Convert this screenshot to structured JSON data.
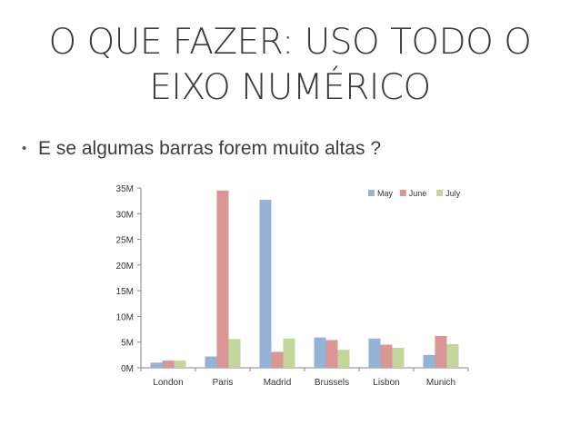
{
  "slide": {
    "title_line1": "O QUE FAZER: USO TODO O",
    "title_line2": "EIXO NUMÉRICO",
    "bullet_text": "E se algumas barras forem muito altas ?"
  },
  "chart_data": {
    "type": "bar",
    "categories": [
      "London",
      "Paris",
      "Madrid",
      "Brussels",
      "Lisbon",
      "Munich"
    ],
    "series": [
      {
        "name": "May",
        "color": "#95b3d7",
        "values": [
          1.0,
          2.2,
          32.7,
          5.9,
          5.7,
          2.5
        ]
      },
      {
        "name": "June",
        "color": "#d99694",
        "values": [
          1.4,
          34.5,
          3.1,
          5.4,
          4.5,
          6.2
        ]
      },
      {
        "name": "July",
        "color": "#c3d69b",
        "values": [
          1.4,
          5.6,
          5.7,
          3.5,
          3.9,
          4.6
        ]
      }
    ],
    "yticks": [
      "0M",
      "5M",
      "10M",
      "15M",
      "20M",
      "25M",
      "30M",
      "35M"
    ],
    "ylim": [
      0,
      35
    ],
    "legend_position": "top-right",
    "grid": false
  }
}
